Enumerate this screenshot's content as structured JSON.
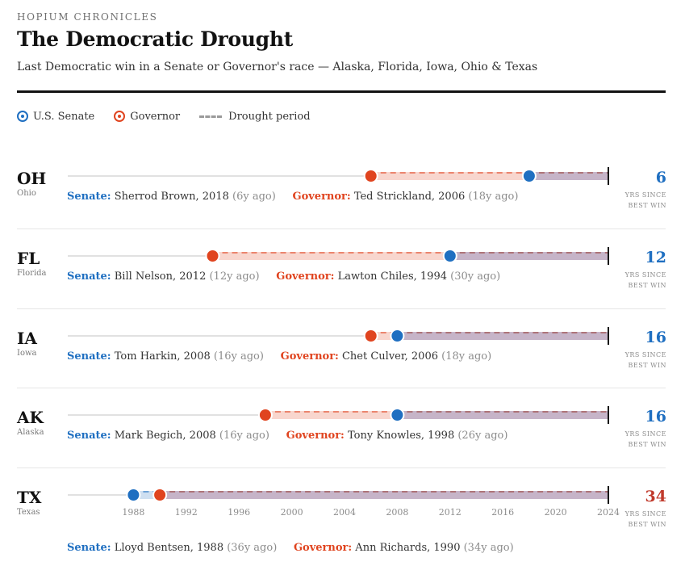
{
  "header": {
    "kicker": "HOPIUM CHRONICLES",
    "title": "The Democratic Drought",
    "subtitle": "Last Democratic win in a Senate or Governor's race — Alaska, Florida, Iowa, Ohio & Texas"
  },
  "legend": {
    "senate": "U.S. Senate",
    "governor": "Governor",
    "drought": "Drought period"
  },
  "labels": {
    "senate": "Senate:",
    "governor": "Governor:",
    "yrs_since_line1": "YRS SINCE",
    "yrs_since_line2": "BEST WIN"
  },
  "colors": {
    "senate": "#1f6fc1",
    "governor": "#e0441f",
    "highlight": "#c0392b"
  },
  "chart_data": {
    "type": "dot-timeline",
    "title": "The Democratic Drought",
    "x_axis": {
      "min": 1984,
      "max": 2024,
      "ticks": [
        1988,
        1992,
        1996,
        2000,
        2004,
        2008,
        2012,
        2016,
        2020,
        2024
      ],
      "tick_labels": [
        "1988",
        "1992",
        "1996",
        "2000",
        "2004",
        "2008",
        "2012",
        "2016",
        "2020",
        "2024"
      ]
    },
    "end_year": 2024,
    "states": [
      {
        "abbr": "OH",
        "name": "Ohio",
        "senate_name": "Sherrod Brown",
        "senate_year": 2018,
        "senate_text": "Sherrod Brown, 2018",
        "senate_ago": "(6y ago)",
        "governor_name": "Ted Strickland",
        "governor_year": 2006,
        "governor_text": "Ted Strickland, 2006",
        "governor_ago": "(18y ago)",
        "years_since_best": 6,
        "years_label": "6"
      },
      {
        "abbr": "FL",
        "name": "Florida",
        "senate_name": "Bill Nelson",
        "senate_year": 2012,
        "senate_text": "Bill Nelson, 2012",
        "senate_ago": "(12y ago)",
        "governor_name": "Lawton Chiles",
        "governor_year": 1994,
        "governor_text": "Lawton Chiles, 1994",
        "governor_ago": "(30y ago)",
        "years_since_best": 12,
        "years_label": "12"
      },
      {
        "abbr": "IA",
        "name": "Iowa",
        "senate_name": "Tom Harkin",
        "senate_year": 2008,
        "senate_text": "Tom Harkin, 2008",
        "senate_ago": "(16y ago)",
        "governor_name": "Chet Culver",
        "governor_year": 2006,
        "governor_text": "Chet Culver, 2006",
        "governor_ago": "(18y ago)",
        "years_since_best": 16,
        "years_label": "16"
      },
      {
        "abbr": "AK",
        "name": "Alaska",
        "senate_name": "Mark Begich",
        "senate_year": 2008,
        "senate_text": "Mark Begich, 2008",
        "senate_ago": "(16y ago)",
        "governor_name": "Tony Knowles",
        "governor_year": 1998,
        "governor_text": "Tony Knowles, 1998",
        "governor_ago": "(26y ago)",
        "years_since_best": 16,
        "years_label": "16"
      },
      {
        "abbr": "TX",
        "name": "Texas",
        "senate_name": "Lloyd Bentsen",
        "senate_year": 1988,
        "senate_text": "Lloyd Bentsen, 1988",
        "senate_ago": "(36y ago)",
        "governor_name": "Ann Richards",
        "governor_year": 1990,
        "governor_text": "Ann Richards, 1990",
        "governor_ago": "(34y ago)",
        "years_since_best": 34,
        "years_label": "34",
        "highlight": true
      }
    ]
  }
}
